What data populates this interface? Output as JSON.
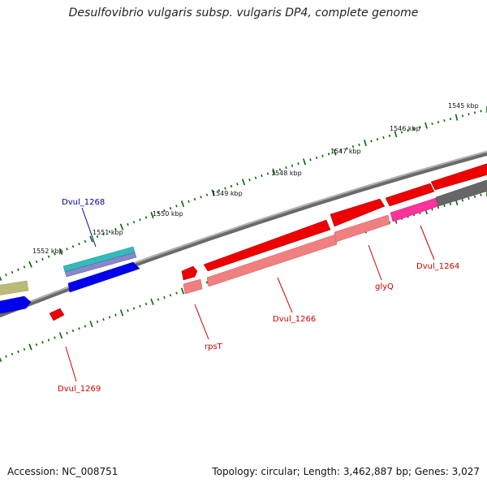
{
  "title": "Desulfovibrio vulgaris subsp. vulgaris DP4, complete genome",
  "footer": {
    "accession": "Accession: NC_008751",
    "summary": "Topology: circular; Length: 3,462,887 bp; Genes: 3,027"
  },
  "scale": {
    "unit_label_suffix": " kbp",
    "ticks_kbp": [
      1545,
      1546,
      1547,
      1548,
      1549,
      1550,
      1551,
      1552
    ],
    "labels": [
      "1545 kbp",
      "1546 kbp",
      "1547 kbp",
      "1548 kbp",
      "1549 kbp",
      "1550 kbp",
      "1551 kbp",
      "1552 kbp"
    ]
  },
  "gene_labels": {
    "dvul_1268": "Dvul_1268",
    "dvul_1269": "Dvul_1269",
    "rpsT": "rpsT",
    "dvul_1266": "Dvul_1266",
    "glyQ": "glyQ",
    "dvul_1264": "Dvul_1264"
  },
  "colors": {
    "backbone": "#888888",
    "forward_gene": "#0000ee",
    "reverse_gene": "#ee0000",
    "rna_cds": "#f08080",
    "trna": "#ff3399",
    "rrna": "#33bbbb",
    "other": "#bbbb77",
    "tick": "#006600",
    "label_forward": "#000099",
    "label_reverse": "#cc0000"
  }
}
